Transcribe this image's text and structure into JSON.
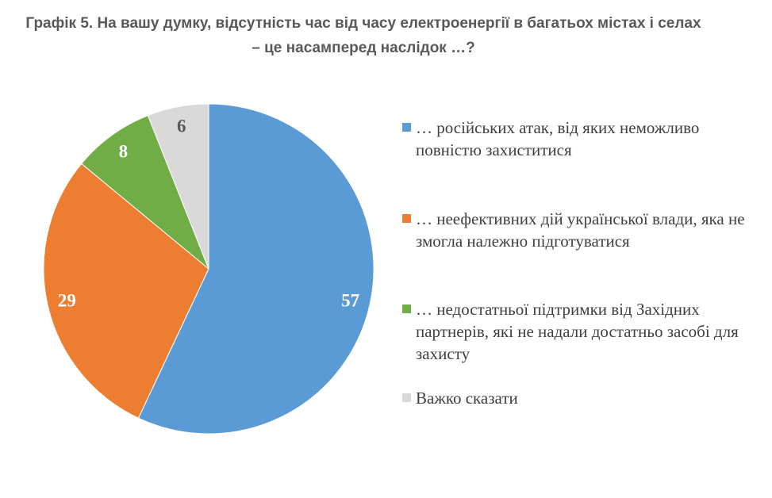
{
  "title": {
    "text": "Графік 5. На вашу думку, відсутність час від часу електроенергії в багатьох містах і селах – це насамперед наслідок …?"
  },
  "chart_data": {
    "type": "pie",
    "title": "Графік 5. На вашу думку, відсутність час від часу електроенергії в багатьох містах і селах – це насамперед наслідок …?",
    "total": 100,
    "start_angle_deg": 0,
    "direction": "clockwise",
    "legend_position": "right",
    "grid": false,
    "slices": [
      {
        "label": "… російських атак, від яких неможливо повністю захиститися",
        "value": 57,
        "color": "#5B9BD5",
        "value_label_color": "#FFFFFF"
      },
      {
        "label": "… неефективних дій української влади, яка не змогла належно підготуватися",
        "value": 29,
        "color": "#ED7D31",
        "value_label_color": "#FFFFFF"
      },
      {
        "label": "… недостатньої підтримки від Західних партнерів, які не надали достатньо засобі для захисту",
        "value": 8,
        "color": "#70AD47",
        "value_label_color": "#FFFFFF"
      },
      {
        "label": "Важко сказати",
        "value": 6,
        "color": "#D9D9D9",
        "value_label_color": "#595959"
      }
    ]
  }
}
